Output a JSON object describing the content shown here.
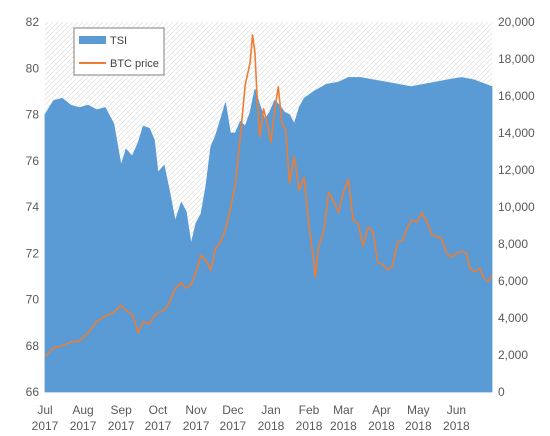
{
  "chart_data": {
    "type": "area",
    "grid": false,
    "legend_position": "top-left",
    "x": {
      "categories": [
        "Jul 2017",
        "Aug 2017",
        "Sep 2017",
        "Oct 2017",
        "Nov 2017",
        "Dec 2017",
        "Jan 2018",
        "Feb 2018",
        "Mar 2018",
        "Apr 2018",
        "May 2018",
        "Jun 2018"
      ],
      "tick_labels": [
        {
          "month": "Jul",
          "year": "2017"
        },
        {
          "month": "Aug",
          "year": "2017"
        },
        {
          "month": "Sep",
          "year": "2017"
        },
        {
          "month": "Oct",
          "year": "2017"
        },
        {
          "month": "Nov",
          "year": "2017"
        },
        {
          "month": "Dec",
          "year": "2017"
        },
        {
          "month": "Jan",
          "year": "2018"
        },
        {
          "month": "Feb",
          "year": "2018"
        },
        {
          "month": "Mar",
          "year": "2018"
        },
        {
          "month": "Apr",
          "year": "2018"
        },
        {
          "month": "May",
          "year": "2018"
        },
        {
          "month": "Jun",
          "year": "2018"
        }
      ],
      "range": [
        "2017-07-01",
        "2018-06-30"
      ]
    },
    "y_left": {
      "ylim": [
        66,
        82
      ],
      "ticks": [
        "66",
        "68",
        "70",
        "72",
        "74",
        "76",
        "78",
        "80",
        "82"
      ]
    },
    "y_right": {
      "ylim": [
        0,
        20000
      ],
      "ticks": [
        "0",
        "2,000",
        "4,000",
        "6,000",
        "8,000",
        "10,000",
        "12,000",
        "14,000",
        "16,000",
        "18,000",
        "20,000"
      ]
    },
    "series": [
      {
        "name": "TSI",
        "axis": "left",
        "kind": "area",
        "color": "#5b9bd5",
        "points": [
          [
            "2017-07-01",
            78.0
          ],
          [
            "2017-07-08",
            78.6
          ],
          [
            "2017-07-15",
            78.7
          ],
          [
            "2017-07-22",
            78.4
          ],
          [
            "2017-07-29",
            78.3
          ],
          [
            "2017-08-05",
            78.4
          ],
          [
            "2017-08-12",
            78.2
          ],
          [
            "2017-08-19",
            78.3
          ],
          [
            "2017-08-26",
            77.6
          ],
          [
            "2017-09-01",
            75.8
          ],
          [
            "2017-09-05",
            76.5
          ],
          [
            "2017-09-10",
            76.2
          ],
          [
            "2017-09-15",
            76.8
          ],
          [
            "2017-09-19",
            77.5
          ],
          [
            "2017-09-24",
            77.4
          ],
          [
            "2017-09-28",
            76.9
          ],
          [
            "2017-10-01",
            75.5
          ],
          [
            "2017-10-06",
            75.8
          ],
          [
            "2017-10-10",
            74.8
          ],
          [
            "2017-10-15",
            73.4
          ],
          [
            "2017-10-20",
            74.2
          ],
          [
            "2017-10-24",
            73.8
          ],
          [
            "2017-10-28",
            72.4
          ],
          [
            "2017-11-01",
            73.3
          ],
          [
            "2017-11-05",
            73.7
          ],
          [
            "2017-11-09",
            74.9
          ],
          [
            "2017-11-13",
            76.6
          ],
          [
            "2017-11-17",
            77.1
          ],
          [
            "2017-11-21",
            77.8
          ],
          [
            "2017-11-25",
            78.5
          ],
          [
            "2017-11-29",
            77.2
          ],
          [
            "2017-12-03",
            77.2
          ],
          [
            "2017-12-07",
            77.7
          ],
          [
            "2017-12-11",
            77.5
          ],
          [
            "2017-12-15",
            78.1
          ],
          [
            "2017-12-19",
            79.1
          ],
          [
            "2017-12-23",
            78.4
          ],
          [
            "2017-12-27",
            77.8
          ],
          [
            "2017-12-31",
            78.1
          ],
          [
            "2018-01-04",
            78.6
          ],
          [
            "2018-01-08",
            78.4
          ],
          [
            "2018-01-12",
            78.1
          ],
          [
            "2018-01-16",
            78.0
          ],
          [
            "2018-01-20",
            77.6
          ],
          [
            "2018-01-24",
            78.3
          ],
          [
            "2018-01-28",
            78.7
          ],
          [
            "2018-02-05",
            79.0
          ],
          [
            "2018-02-15",
            79.3
          ],
          [
            "2018-02-25",
            79.4
          ],
          [
            "2018-03-05",
            79.6
          ],
          [
            "2018-03-15",
            79.6
          ],
          [
            "2018-03-25",
            79.5
          ],
          [
            "2018-04-05",
            79.4
          ],
          [
            "2018-04-15",
            79.3
          ],
          [
            "2018-04-25",
            79.2
          ],
          [
            "2018-05-05",
            79.3
          ],
          [
            "2018-05-15",
            79.4
          ],
          [
            "2018-05-25",
            79.5
          ],
          [
            "2018-06-05",
            79.6
          ],
          [
            "2018-06-15",
            79.5
          ],
          [
            "2018-06-25",
            79.3
          ],
          [
            "2018-06-30",
            79.2
          ]
        ]
      },
      {
        "name": "BTC price",
        "axis": "right",
        "kind": "line",
        "color": "#ed7d31",
        "points": [
          [
            "2017-07-01",
            1900
          ],
          [
            "2017-07-08",
            2400
          ],
          [
            "2017-07-15",
            2500
          ],
          [
            "2017-07-22",
            2700
          ],
          [
            "2017-07-29",
            2750
          ],
          [
            "2017-08-05",
            3200
          ],
          [
            "2017-08-12",
            3800
          ],
          [
            "2017-08-19",
            4100
          ],
          [
            "2017-08-26",
            4300
          ],
          [
            "2017-09-01",
            4700
          ],
          [
            "2017-09-05",
            4400
          ],
          [
            "2017-09-10",
            4200
          ],
          [
            "2017-09-15",
            3200
          ],
          [
            "2017-09-19",
            3800
          ],
          [
            "2017-09-24",
            3700
          ],
          [
            "2017-09-28",
            4100
          ],
          [
            "2017-10-01",
            4300
          ],
          [
            "2017-10-06",
            4400
          ],
          [
            "2017-10-10",
            4800
          ],
          [
            "2017-10-15",
            5600
          ],
          [
            "2017-10-20",
            5900
          ],
          [
            "2017-10-24",
            5600
          ],
          [
            "2017-10-28",
            5800
          ],
          [
            "2017-11-01",
            6500
          ],
          [
            "2017-11-05",
            7400
          ],
          [
            "2017-11-09",
            7100
          ],
          [
            "2017-11-13",
            6600
          ],
          [
            "2017-11-17",
            7800
          ],
          [
            "2017-11-21",
            8100
          ],
          [
            "2017-11-25",
            8800
          ],
          [
            "2017-11-29",
            9900
          ],
          [
            "2017-12-03",
            11200
          ],
          [
            "2017-12-07",
            13800
          ],
          [
            "2017-12-11",
            16600
          ],
          [
            "2017-12-15",
            17800
          ],
          [
            "2017-12-17",
            19300
          ],
          [
            "2017-12-19",
            18300
          ],
          [
            "2017-12-21",
            15600
          ],
          [
            "2017-12-23",
            13800
          ],
          [
            "2017-12-26",
            15300
          ],
          [
            "2017-12-29",
            14500
          ],
          [
            "2018-01-01",
            13500
          ],
          [
            "2018-01-04",
            15200
          ],
          [
            "2018-01-07",
            16500
          ],
          [
            "2018-01-10",
            14500
          ],
          [
            "2018-01-13",
            14200
          ],
          [
            "2018-01-16",
            11300
          ],
          [
            "2018-01-20",
            12700
          ],
          [
            "2018-01-24",
            10900
          ],
          [
            "2018-01-28",
            11600
          ],
          [
            "2018-02-01",
            9000
          ],
          [
            "2018-02-05",
            7000
          ],
          [
            "2018-02-06",
            6200
          ],
          [
            "2018-02-09",
            7900
          ],
          [
            "2018-02-13",
            8700
          ],
          [
            "2018-02-17",
            10800
          ],
          [
            "2018-02-21",
            10300
          ],
          [
            "2018-02-25",
            9700
          ],
          [
            "2018-03-01",
            10800
          ],
          [
            "2018-03-05",
            11500
          ],
          [
            "2018-03-09",
            9300
          ],
          [
            "2018-03-13",
            9100
          ],
          [
            "2018-03-17",
            7900
          ],
          [
            "2018-03-21",
            8900
          ],
          [
            "2018-03-25",
            8700
          ],
          [
            "2018-03-29",
            7000
          ],
          [
            "2018-04-02",
            6900
          ],
          [
            "2018-04-06",
            6600
          ],
          [
            "2018-04-10",
            6800
          ],
          [
            "2018-04-14",
            8100
          ],
          [
            "2018-04-18",
            8200
          ],
          [
            "2018-04-22",
            8900
          ],
          [
            "2018-04-26",
            9300
          ],
          [
            "2018-04-30",
            9200
          ],
          [
            "2018-05-04",
            9700
          ],
          [
            "2018-05-08",
            9200
          ],
          [
            "2018-05-12",
            8500
          ],
          [
            "2018-05-16",
            8400
          ],
          [
            "2018-05-20",
            8300
          ],
          [
            "2018-05-24",
            7500
          ],
          [
            "2018-05-28",
            7300
          ],
          [
            "2018-06-01",
            7500
          ],
          [
            "2018-06-05",
            7600
          ],
          [
            "2018-06-09",
            7500
          ],
          [
            "2018-06-12",
            6700
          ],
          [
            "2018-06-16",
            6500
          ],
          [
            "2018-06-20",
            6700
          ],
          [
            "2018-06-24",
            6100
          ],
          [
            "2018-06-27",
            6000
          ],
          [
            "2018-06-30",
            6300
          ]
        ]
      }
    ]
  }
}
